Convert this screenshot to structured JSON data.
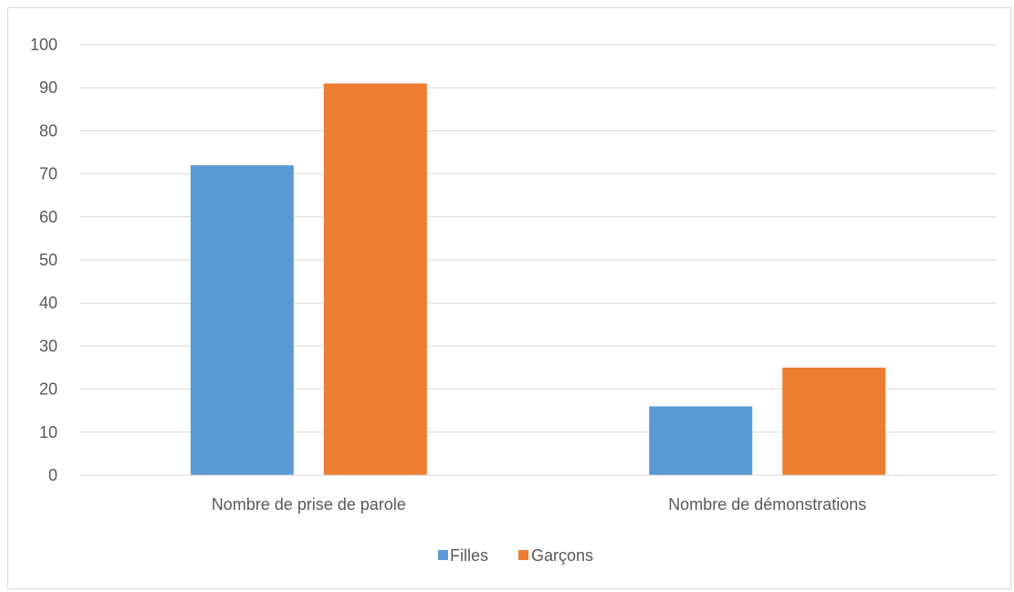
{
  "chart_data": {
    "type": "bar",
    "categories": [
      "Nombre de prise de parole",
      "Nombre de démonstrations"
    ],
    "series": [
      {
        "name": "Filles",
        "values": [
          72,
          16
        ],
        "color": "#5b9bd5"
      },
      {
        "name": "Garçons",
        "values": [
          91,
          25
        ],
        "color": "#ed7d31"
      }
    ],
    "yticks": [
      "0",
      "10",
      "20",
      "30",
      "40",
      "50",
      "60",
      "70",
      "80",
      "90",
      "100"
    ],
    "ylim": [
      0,
      100
    ],
    "grid": true,
    "legend": "bottom-center",
    "gridline_color": "#d9d9d9",
    "text_color": "#595959"
  }
}
